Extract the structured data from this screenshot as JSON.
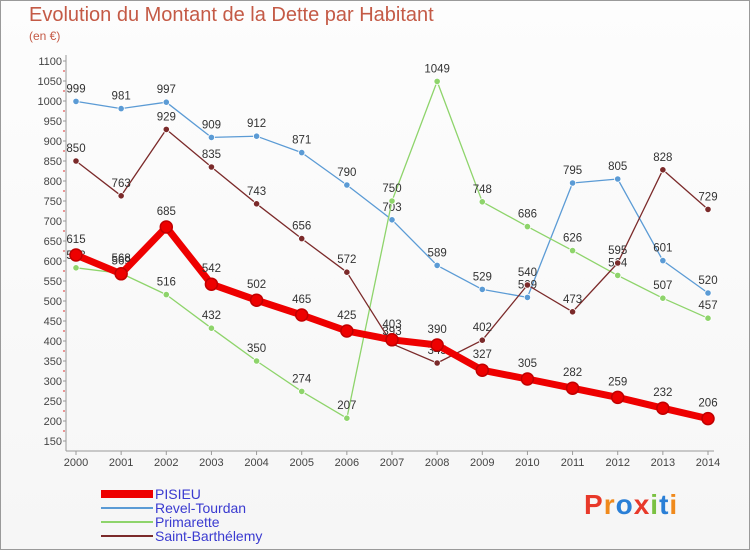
{
  "title": "Evolution du Montant de la Dette par Habitant",
  "unit": "(en €)",
  "brand": {
    "letters": [
      "P",
      "r",
      "o",
      "x",
      "i",
      "t",
      "i"
    ],
    "colors": [
      "#e8392a",
      "#f08a1c",
      "#2a7fd6",
      "#e8392a",
      "#7ac141",
      "#2a7fd6",
      "#f08a1c"
    ]
  },
  "chart_data": {
    "type": "line",
    "title": "Evolution du Montant de la Dette par Habitant",
    "ylabel": "(en €)",
    "x": [
      2000,
      2001,
      2002,
      2003,
      2004,
      2005,
      2006,
      2007,
      2008,
      2009,
      2010,
      2011,
      2012,
      2013,
      2014
    ],
    "ylim": [
      150,
      1100
    ],
    "yticks": [
      150,
      200,
      250,
      300,
      350,
      400,
      450,
      500,
      550,
      600,
      650,
      700,
      750,
      800,
      850,
      900,
      950,
      1000,
      1050,
      1100
    ],
    "grid": false,
    "legend_position": "bottom-left",
    "series": [
      {
        "name": "Revel-Tourdan",
        "color": "#5b9bd5",
        "values": [
          999,
          981,
          997,
          909,
          912,
          871,
          790,
          703,
          589,
          529,
          509,
          795,
          805,
          601,
          520
        ]
      },
      {
        "name": "Primarette",
        "color": "#8ed46b",
        "values": [
          583,
          569,
          516,
          432,
          350,
          274,
          207,
          750,
          1049,
          748,
          686,
          626,
          564,
          507,
          457
        ]
      },
      {
        "name": "Saint-Barthélemy",
        "color": "#7b2a2a",
        "values": [
          850,
          763,
          929,
          835,
          743,
          656,
          572,
          393,
          345,
          402,
          540,
          473,
          595,
          828,
          729
        ]
      },
      {
        "name": "PISIEU",
        "color": "#ee0000",
        "values": [
          615,
          568,
          685,
          542,
          502,
          465,
          425,
          403,
          390,
          327,
          305,
          282,
          259,
          232,
          206
        ]
      }
    ]
  }
}
